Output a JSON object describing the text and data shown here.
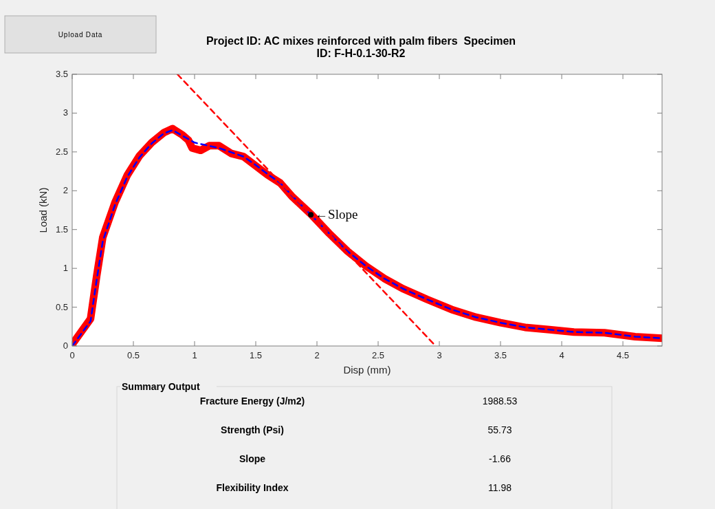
{
  "chart_data": {
    "type": "line",
    "title": "Project ID: AC mixes reinforced with palm fibers  Specimen ID: F-H-0.1-30-R2",
    "xlabel": "Disp (mm)",
    "ylabel": "Load (kN)",
    "xlim": [
      0,
      4.82
    ],
    "ylim": [
      0,
      3.5
    ],
    "xticks": [
      0,
      0.5,
      1,
      1.5,
      2,
      2.5,
      3,
      3.5,
      4,
      4.5
    ],
    "yticks": [
      0,
      0.5,
      1,
      1.5,
      2,
      2.5,
      3,
      3.5
    ],
    "grid": false,
    "series": [
      {
        "color": "#ff0000",
        "line_style": "solid",
        "x": [
          0,
          0.15,
          0.2,
          0.25,
          0.35,
          0.45,
          0.55,
          0.65,
          0.75,
          0.82,
          0.9,
          0.95,
          0.98,
          1.05,
          1.12,
          1.2,
          1.3,
          1.4,
          1.5,
          1.6,
          1.7,
          1.8,
          1.95,
          2.1,
          2.25,
          2.4,
          2.55,
          2.7,
          2.9,
          3.1,
          3.3,
          3.5,
          3.7,
          3.9,
          4.1,
          4.35,
          4.6,
          4.82
        ],
        "values": [
          0.02,
          0.35,
          0.9,
          1.4,
          1.85,
          2.2,
          2.45,
          2.62,
          2.75,
          2.8,
          2.72,
          2.65,
          2.55,
          2.52,
          2.58,
          2.58,
          2.48,
          2.44,
          2.32,
          2.2,
          2.1,
          1.92,
          1.7,
          1.45,
          1.22,
          1.03,
          0.87,
          0.74,
          0.6,
          0.47,
          0.37,
          0.3,
          0.24,
          0.21,
          0.18,
          0.17,
          0.12,
          0.1
        ]
      },
      {
        "color": "#0000ff",
        "line_style": "dashed",
        "x": [
          0,
          0.15,
          0.2,
          0.25,
          0.35,
          0.45,
          0.55,
          0.65,
          0.75,
          0.82,
          1.0,
          1.2,
          1.4,
          1.5,
          1.6,
          1.7,
          1.8,
          1.95,
          2.1,
          2.25,
          2.4,
          2.55,
          2.7,
          2.9,
          3.1,
          3.3,
          3.5,
          3.7,
          3.9,
          4.1,
          4.35,
          4.6,
          4.82
        ],
        "values": [
          0.0,
          0.32,
          0.85,
          1.35,
          1.82,
          2.18,
          2.43,
          2.61,
          2.74,
          2.78,
          2.62,
          2.55,
          2.44,
          2.33,
          2.21,
          2.1,
          1.93,
          1.69,
          1.45,
          1.22,
          1.03,
          0.87,
          0.74,
          0.6,
          0.47,
          0.37,
          0.3,
          0.24,
          0.21,
          0.18,
          0.17,
          0.12,
          0.1
        ]
      },
      {
        "color": "#ff0000",
        "line_style": "dashed",
        "x": [
          0.86,
          2.97
        ],
        "values": [
          3.5,
          0
        ]
      }
    ],
    "annotations": [
      "Upload Data",
      {
        "text": "←Slope",
        "x": 1.95,
        "y": 1.69
      },
      "Summary Output",
      "Fracture Energy (J/m2)",
      "1988.53",
      "Strength (Psi)",
      "55.73",
      "Slope",
      "-1.66",
      "Flexibility Index",
      "11.98"
    ]
  }
}
